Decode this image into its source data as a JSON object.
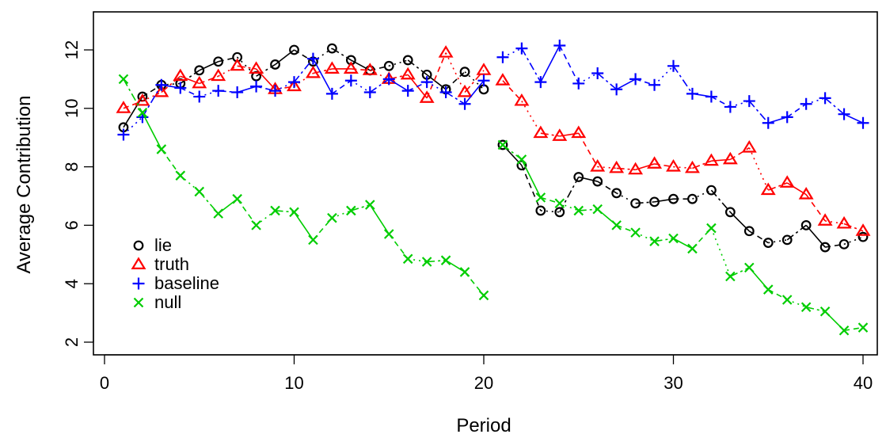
{
  "chart_data": {
    "type": "line",
    "xlabel": "Period",
    "ylabel": "Average Contribution",
    "xlim": [
      0,
      41
    ],
    "ylim": [
      1.6,
      13.2
    ],
    "xticks": [
      0,
      10,
      20,
      30,
      40
    ],
    "yticks": [
      2,
      4,
      6,
      8,
      10,
      12
    ],
    "grid": false,
    "legend_position": "bottom-left",
    "series": [
      {
        "name": "lie",
        "color": "#000000",
        "marker": "circle",
        "line_style": "mixed",
        "x": [
          1,
          2,
          3,
          4,
          5,
          6,
          7,
          8,
          9,
          10,
          11,
          12,
          13,
          14,
          15,
          16,
          17,
          18,
          19,
          20,
          21,
          22,
          23,
          24,
          25,
          26,
          27,
          28,
          29,
          30,
          31,
          32,
          33,
          34,
          35,
          36,
          37,
          38,
          39,
          40
        ],
        "y": [
          9.35,
          10.4,
          10.8,
          10.85,
          11.3,
          11.6,
          11.75,
          11.1,
          11.5,
          12.0,
          11.6,
          12.05,
          11.65,
          11.3,
          11.45,
          11.65,
          11.15,
          10.65,
          11.25,
          10.65,
          8.75,
          8.05,
          6.5,
          6.45,
          7.65,
          7.5,
          7.1,
          6.75,
          6.8,
          6.9,
          6.9,
          7.2,
          6.45,
          5.8,
          5.4,
          5.5,
          6.0,
          5.25,
          5.35,
          5.6
        ]
      },
      {
        "name": "truth",
        "color": "#ff0000",
        "marker": "triangle",
        "line_style": "mixed",
        "x": [
          1,
          2,
          3,
          4,
          5,
          6,
          7,
          8,
          9,
          10,
          11,
          12,
          13,
          14,
          15,
          16,
          17,
          18,
          19,
          20,
          21,
          22,
          23,
          24,
          25,
          26,
          27,
          28,
          29,
          30,
          31,
          32,
          33,
          34,
          35,
          36,
          37,
          38,
          39,
          40
        ],
        "y": [
          10.0,
          10.25,
          10.55,
          11.1,
          10.85,
          11.1,
          11.45,
          11.35,
          10.65,
          10.75,
          11.2,
          11.35,
          11.35,
          11.3,
          11.0,
          11.15,
          10.35,
          11.9,
          10.55,
          11.3,
          10.95,
          10.25,
          9.15,
          9.05,
          9.15,
          8.0,
          7.95,
          7.9,
          8.1,
          8.0,
          7.95,
          8.2,
          8.25,
          8.65,
          7.2,
          7.45,
          7.05,
          6.15,
          6.05,
          5.8
        ]
      },
      {
        "name": "baseline",
        "color": "#0000ff",
        "marker": "plus",
        "line_style": "mixed",
        "x": [
          1,
          2,
          3,
          4,
          5,
          6,
          7,
          8,
          9,
          10,
          11,
          12,
          13,
          14,
          15,
          16,
          17,
          18,
          19,
          20,
          21,
          22,
          23,
          24,
          25,
          26,
          27,
          28,
          29,
          30,
          31,
          32,
          33,
          34,
          35,
          36,
          37,
          38,
          39,
          40
        ],
        "y": [
          9.1,
          9.7,
          10.8,
          10.7,
          10.4,
          10.6,
          10.55,
          10.75,
          10.6,
          10.9,
          11.7,
          10.5,
          10.95,
          10.55,
          11.0,
          10.6,
          10.9,
          10.55,
          10.15,
          10.95,
          11.75,
          12.05,
          10.9,
          12.15,
          10.85,
          11.2,
          10.65,
          11.0,
          10.8,
          11.45,
          10.5,
          10.4,
          10.05,
          10.25,
          9.5,
          9.7,
          10.15,
          10.35,
          9.8,
          9.5
        ]
      },
      {
        "name": "null",
        "color": "#00cd00",
        "marker": "cross",
        "line_style": "mixed",
        "x": [
          1,
          2,
          3,
          4,
          5,
          6,
          7,
          8,
          9,
          10,
          11,
          12,
          13,
          14,
          15,
          16,
          17,
          18,
          19,
          20,
          21,
          22,
          23,
          24,
          25,
          26,
          27,
          28,
          29,
          30,
          31,
          32,
          33,
          34,
          35,
          36,
          37,
          38,
          39,
          40
        ],
        "y": [
          11.0,
          9.85,
          8.6,
          7.7,
          7.15,
          6.4,
          6.9,
          6.0,
          6.5,
          6.45,
          5.5,
          6.25,
          6.5,
          6.7,
          5.7,
          4.85,
          4.75,
          4.8,
          4.4,
          3.6,
          8.75,
          8.25,
          6.95,
          6.75,
          6.5,
          6.55,
          6.0,
          5.75,
          5.45,
          5.55,
          5.2,
          5.9,
          4.25,
          4.55,
          3.8,
          3.45,
          3.2,
          3.05,
          2.4,
          2.5
        ]
      }
    ]
  }
}
